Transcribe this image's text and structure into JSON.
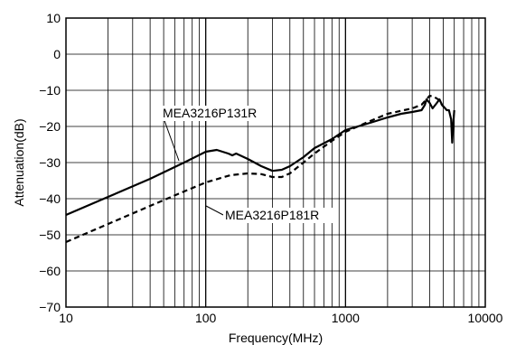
{
  "chart_data": {
    "type": "line",
    "title": "",
    "xlabel": "Frequency(MHz)",
    "ylabel": "Attenuation(dB)",
    "x_scale": "log",
    "xlim": [
      10,
      10000
    ],
    "ylim": [
      -70,
      10
    ],
    "x_ticks": [
      "10",
      "100",
      "1000",
      "10000"
    ],
    "y_ticks": [
      "10",
      "0",
      "−10",
      "−20",
      "−30",
      "−40",
      "−50",
      "−60",
      "−70"
    ],
    "grid": true,
    "series": [
      {
        "name": "MEA3216P131R",
        "style": "solid",
        "points": [
          [
            10,
            -44.5
          ],
          [
            20,
            -39.5
          ],
          [
            40,
            -34.5
          ],
          [
            70,
            -30
          ],
          [
            100,
            -27
          ],
          [
            120,
            -26.5
          ],
          [
            145,
            -27.5
          ],
          [
            155,
            -28
          ],
          [
            165,
            -27.5
          ],
          [
            200,
            -29
          ],
          [
            250,
            -31
          ],
          [
            300,
            -32.3
          ],
          [
            350,
            -32
          ],
          [
            400,
            -31
          ],
          [
            500,
            -28.5
          ],
          [
            600,
            -26
          ],
          [
            800,
            -23.5
          ],
          [
            1000,
            -21
          ],
          [
            1500,
            -19
          ],
          [
            2000,
            -17.5
          ],
          [
            2500,
            -16.5
          ],
          [
            3000,
            -16
          ],
          [
            3500,
            -15.5
          ],
          [
            3700,
            -14
          ],
          [
            3800,
            -12.5
          ],
          [
            4000,
            -13.5
          ],
          [
            4200,
            -15
          ],
          [
            4500,
            -13.5
          ],
          [
            4700,
            -12.5
          ],
          [
            4900,
            -14
          ],
          [
            5300,
            -15.5
          ],
          [
            5500,
            -15.5
          ],
          [
            5700,
            -18
          ],
          [
            5800,
            -24.5
          ],
          [
            5900,
            -19
          ],
          [
            6000,
            -15.5
          ]
        ]
      },
      {
        "name": "MEA3216P181R",
        "style": "dashed",
        "points": [
          [
            10,
            -52
          ],
          [
            20,
            -47
          ],
          [
            40,
            -42
          ],
          [
            70,
            -38
          ],
          [
            100,
            -35.5
          ],
          [
            150,
            -33.5
          ],
          [
            200,
            -33
          ],
          [
            250,
            -33.2
          ],
          [
            300,
            -34
          ],
          [
            350,
            -34
          ],
          [
            400,
            -33
          ],
          [
            500,
            -30
          ],
          [
            600,
            -27.5
          ],
          [
            800,
            -24
          ],
          [
            1000,
            -21.5
          ],
          [
            1500,
            -18.5
          ],
          [
            2000,
            -16.5
          ],
          [
            3000,
            -15
          ],
          [
            3500,
            -14
          ],
          [
            4000,
            -11.5
          ],
          [
            4300,
            -11.8
          ],
          [
            4600,
            -12.5
          ],
          [
            5000,
            -14.5
          ]
        ]
      }
    ]
  }
}
